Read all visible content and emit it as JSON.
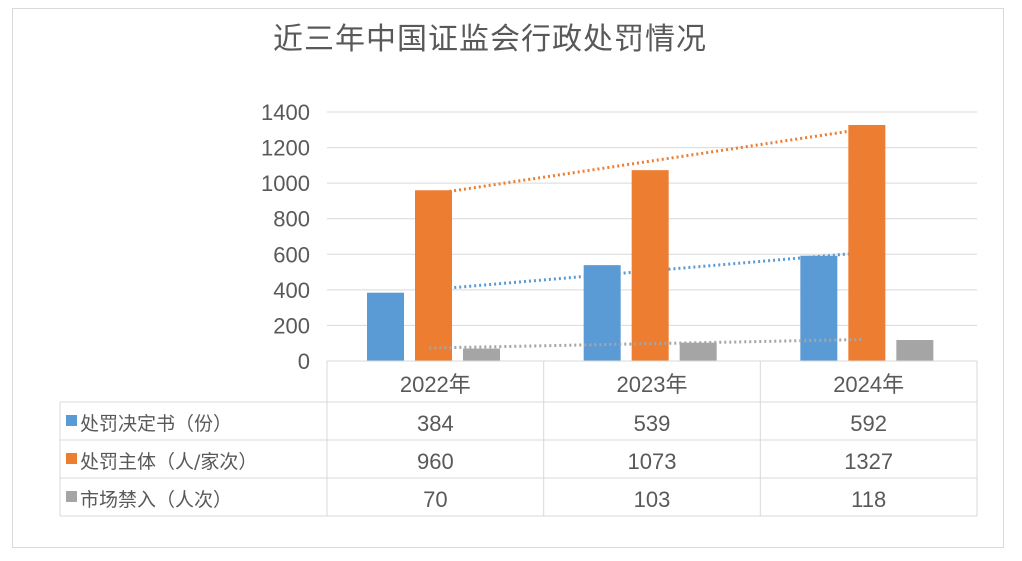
{
  "chart_data": {
    "type": "bar",
    "title": "近三年中国证监会行政处罚情况",
    "categories": [
      "2022年",
      "2023年",
      "2024年"
    ],
    "series": [
      {
        "name": "处罚决定书（份）",
        "values": [
          384,
          539,
          592
        ],
        "color": "#5b9bd5"
      },
      {
        "name": "处罚主体（人/家次）",
        "values": [
          960,
          1073,
          1327
        ],
        "color": "#ed7d31"
      },
      {
        "name": "市场禁入（人次）",
        "values": [
          70,
          103,
          118
        ],
        "color": "#a5a5a5"
      }
    ],
    "ylim": [
      0,
      1400
    ],
    "yticks": [
      0,
      200,
      400,
      600,
      800,
      1000,
      1200,
      1400
    ],
    "grid": true,
    "trendlines": "linear, dotted, per series",
    "legend": "data table below chart"
  }
}
